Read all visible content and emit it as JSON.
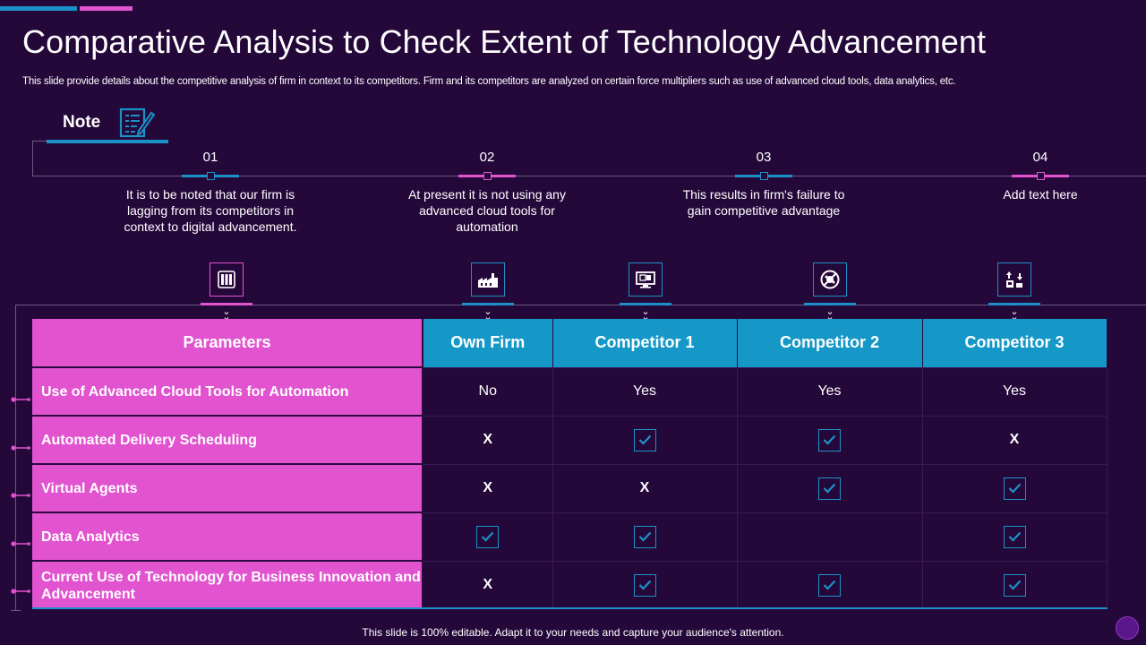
{
  "title": "Comparative Analysis to Check Extent of Technology Advancement",
  "subtitle": "This slide provide details about the competitive analysis of firm in context to its competitors. Firm and its competitors are analyzed on certain force multipliers such as use of advanced cloud tools, data analytics, etc.",
  "note": {
    "label": "Note",
    "icon": "notepad-pencil-icon"
  },
  "steps": [
    {
      "num": "01",
      "text": "It is to be noted that our firm is lagging from its competitors in context to digital advancement.",
      "color": "#1c91c7"
    },
    {
      "num": "02",
      "text": "At present it is not using any advanced cloud tools for automation",
      "color": "#e253cf"
    },
    {
      "num": "03",
      "text": "This results in firm's failure to gain competitive advantage",
      "color": "#1c91c7"
    },
    {
      "num": "04",
      "text": "Add text here",
      "color": "#e253cf"
    }
  ],
  "column_icons": [
    "server-rack-icon",
    "factory-icon",
    "computer-monitor-icon",
    "no-signal-globe-icon",
    "lab-transfer-icon"
  ],
  "table": {
    "headers": [
      "Parameters",
      "Own Firm",
      "Competitor 1",
      "Competitor 2",
      "Competitor 3"
    ],
    "rows": [
      {
        "param": "Use of Advanced Cloud Tools for Automation",
        "values": [
          "No",
          "Yes",
          "Yes",
          "Yes"
        ]
      },
      {
        "param": "Automated Delivery Scheduling",
        "values": [
          "X",
          "check",
          "check",
          "X"
        ]
      },
      {
        "param": "Virtual Agents",
        "values": [
          "X",
          "X",
          "check",
          "check"
        ]
      },
      {
        "param": "Data Analytics",
        "values": [
          "check",
          "check",
          "",
          "check"
        ]
      },
      {
        "param": "Current Use of Technology for Business Innovation and Advancement",
        "values": [
          "X",
          "check",
          "check",
          "check"
        ]
      }
    ]
  },
  "footer": "This slide is 100% editable. Adapt it to your needs and capture your audience's attention.",
  "colors": {
    "background": "#25083a",
    "pink": "#e253cf",
    "blue": "#1598c7"
  }
}
